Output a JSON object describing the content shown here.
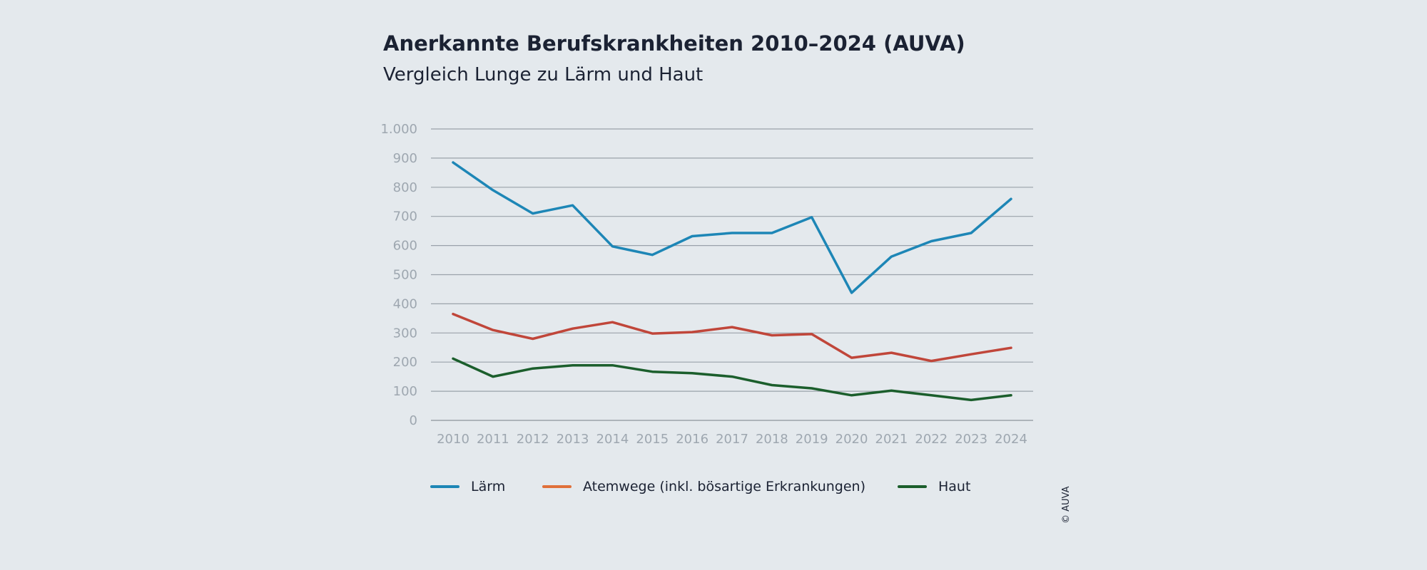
{
  "chart_data": {
    "type": "line",
    "title": "Anerkannte Berufskrankheiten 2010–2024 (AUVA)",
    "subtitle": "Vergleich Lunge zu Lärm und Haut",
    "x": [
      "2010",
      "2011",
      "2012",
      "2013",
      "2014",
      "2015",
      "2016",
      "2017",
      "2018",
      "2019",
      "2020",
      "2021",
      "2022",
      "2023",
      "2024"
    ],
    "ylim": [
      0,
      1000
    ],
    "yticks": [
      0,
      100,
      200,
      300,
      400,
      500,
      600,
      700,
      800,
      900,
      1000
    ],
    "ytick_labels": [
      "0",
      "100",
      "200",
      "300",
      "400",
      "500",
      "600",
      "700",
      "800",
      "900",
      "1.000"
    ],
    "grid": true,
    "legend_position": "bottom",
    "series": [
      {
        "name": "Lärm",
        "color": "#1d86b6",
        "values": [
          885,
          790,
          710,
          738,
          597,
          568,
          632,
          643,
          643,
          697,
          438,
          562,
          615,
          643,
          760
        ]
      },
      {
        "name": "Atemwege (inkl. bösartige Erkrankungen)",
        "color": "#c0463a",
        "legend_color": "#e0703a",
        "values": [
          365,
          310,
          280,
          315,
          337,
          298,
          303,
          320,
          292,
          296,
          215,
          232,
          204,
          227,
          249
        ]
      },
      {
        "name": "Haut",
        "color": "#1b5e2c",
        "values": [
          212,
          150,
          178,
          189,
          189,
          167,
          162,
          150,
          121,
          110,
          86,
          102,
          86,
          70,
          86
        ]
      }
    ]
  },
  "credit": "© AUVA"
}
